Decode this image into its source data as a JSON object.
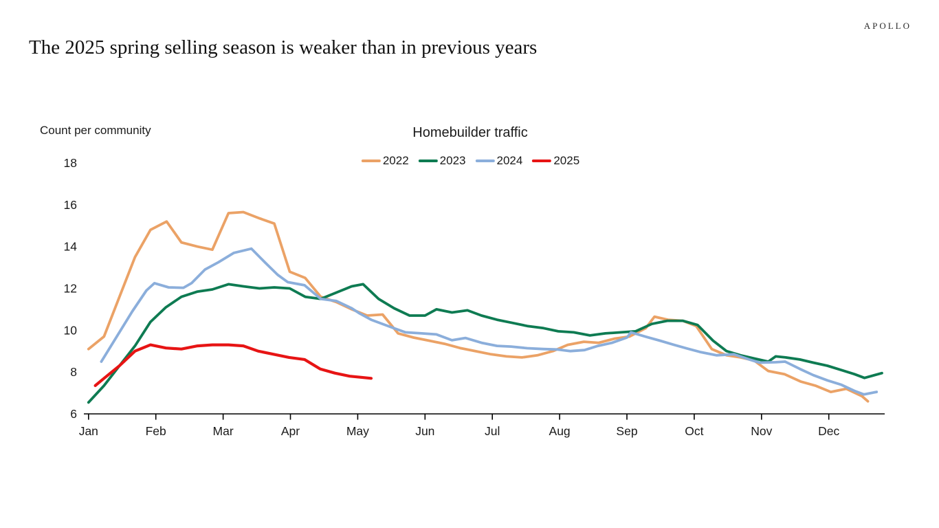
{
  "header": {
    "logo": "APOLLO",
    "title": "The 2025 spring selling season is weaker than in previous years"
  },
  "chart_data": {
    "type": "line",
    "title": "Homebuilder traffic",
    "y_axis_title": "Count per community",
    "ylim": [
      6,
      18
    ],
    "y_ticks": [
      6,
      8,
      10,
      12,
      14,
      16,
      18
    ],
    "x_tick_labels": [
      "Jan",
      "Feb",
      "Mar",
      "Apr",
      "May",
      "Jun",
      "Jul",
      "Aug",
      "Sep",
      "Oct",
      "Nov",
      "Dec"
    ],
    "x_unit": "month position (0 = Jan tick), weekly samples",
    "grid": false,
    "legend_position": "top-center",
    "series": [
      {
        "name": "2022",
        "color": "#EBA266",
        "points": [
          [
            0.0,
            9.1
          ],
          [
            0.23,
            9.7
          ],
          [
            0.46,
            11.6
          ],
          [
            0.69,
            13.5
          ],
          [
            0.92,
            14.8
          ],
          [
            1.16,
            15.2
          ],
          [
            1.38,
            14.2
          ],
          [
            1.62,
            14.0
          ],
          [
            1.84,
            13.85
          ],
          [
            2.08,
            15.6
          ],
          [
            2.3,
            15.65
          ],
          [
            2.54,
            15.35
          ],
          [
            2.76,
            15.1
          ],
          [
            2.99,
            12.8
          ],
          [
            3.22,
            12.5
          ],
          [
            3.45,
            11.6
          ],
          [
            3.68,
            11.35
          ],
          [
            3.91,
            11.0
          ],
          [
            4.14,
            10.7
          ],
          [
            4.37,
            10.75
          ],
          [
            4.6,
            9.85
          ],
          [
            4.83,
            9.65
          ],
          [
            5.06,
            9.5
          ],
          [
            5.29,
            9.35
          ],
          [
            5.52,
            9.15
          ],
          [
            5.75,
            9.0
          ],
          [
            5.98,
            8.85
          ],
          [
            6.21,
            8.75
          ],
          [
            6.44,
            8.7
          ],
          [
            6.67,
            8.8
          ],
          [
            6.9,
            9.0
          ],
          [
            7.12,
            9.3
          ],
          [
            7.36,
            9.45
          ],
          [
            7.58,
            9.4
          ],
          [
            7.82,
            9.6
          ],
          [
            8.04,
            9.7
          ],
          [
            8.28,
            10.1
          ],
          [
            8.41,
            10.65
          ],
          [
            8.61,
            10.5
          ],
          [
            8.83,
            10.45
          ],
          [
            9.03,
            10.2
          ],
          [
            9.26,
            9.1
          ],
          [
            9.48,
            8.8
          ],
          [
            9.69,
            8.7
          ],
          [
            9.89,
            8.55
          ],
          [
            10.1,
            8.05
          ],
          [
            10.34,
            7.9
          ],
          [
            10.58,
            7.55
          ],
          [
            10.8,
            7.35
          ],
          [
            11.03,
            7.05
          ],
          [
            11.26,
            7.2
          ],
          [
            11.49,
            6.85
          ],
          [
            11.58,
            6.6
          ]
        ]
      },
      {
        "name": "2023",
        "color": "#0E7B52",
        "points": [
          [
            0.0,
            6.55
          ],
          [
            0.23,
            7.35
          ],
          [
            0.46,
            8.3
          ],
          [
            0.69,
            9.25
          ],
          [
            0.92,
            10.4
          ],
          [
            1.15,
            11.1
          ],
          [
            1.38,
            11.6
          ],
          [
            1.62,
            11.85
          ],
          [
            1.84,
            11.95
          ],
          [
            2.08,
            12.2
          ],
          [
            2.3,
            12.1
          ],
          [
            2.54,
            12.0
          ],
          [
            2.76,
            12.05
          ],
          [
            2.99,
            12.0
          ],
          [
            3.22,
            11.6
          ],
          [
            3.45,
            11.5
          ],
          [
            3.68,
            11.8
          ],
          [
            3.91,
            12.1
          ],
          [
            4.08,
            12.2
          ],
          [
            4.31,
            11.5
          ],
          [
            4.54,
            11.05
          ],
          [
            4.77,
            10.7
          ],
          [
            5.0,
            10.7
          ],
          [
            5.17,
            11.0
          ],
          [
            5.4,
            10.85
          ],
          [
            5.63,
            10.95
          ],
          [
            5.84,
            10.7
          ],
          [
            6.07,
            10.5
          ],
          [
            6.3,
            10.35
          ],
          [
            6.52,
            10.2
          ],
          [
            6.76,
            10.1
          ],
          [
            6.98,
            9.95
          ],
          [
            7.21,
            9.9
          ],
          [
            7.45,
            9.75
          ],
          [
            7.68,
            9.85
          ],
          [
            7.91,
            9.9
          ],
          [
            8.13,
            9.95
          ],
          [
            8.37,
            10.3
          ],
          [
            8.6,
            10.45
          ],
          [
            8.83,
            10.45
          ],
          [
            9.05,
            10.25
          ],
          [
            9.28,
            9.5
          ],
          [
            9.48,
            9.0
          ],
          [
            9.69,
            8.8
          ],
          [
            9.89,
            8.65
          ],
          [
            10.1,
            8.5
          ],
          [
            10.21,
            8.75
          ],
          [
            10.36,
            8.7
          ],
          [
            10.57,
            8.6
          ],
          [
            10.77,
            8.45
          ],
          [
            10.98,
            8.3
          ],
          [
            11.18,
            8.1
          ],
          [
            11.38,
            7.9
          ],
          [
            11.53,
            7.72
          ],
          [
            11.79,
            7.95
          ]
        ]
      },
      {
        "name": "2024",
        "color": "#8BAEDB",
        "points": [
          [
            0.19,
            8.5
          ],
          [
            0.42,
            9.7
          ],
          [
            0.65,
            10.9
          ],
          [
            0.86,
            11.9
          ],
          [
            0.98,
            12.25
          ],
          [
            1.19,
            12.05
          ],
          [
            1.41,
            12.03
          ],
          [
            1.53,
            12.25
          ],
          [
            1.73,
            12.9
          ],
          [
            1.93,
            13.25
          ],
          [
            2.16,
            13.7
          ],
          [
            2.42,
            13.9
          ],
          [
            2.62,
            13.25
          ],
          [
            2.81,
            12.65
          ],
          [
            2.96,
            12.3
          ],
          [
            3.21,
            12.15
          ],
          [
            3.45,
            11.5
          ],
          [
            3.68,
            11.4
          ],
          [
            3.91,
            11.05
          ],
          [
            4.03,
            10.8
          ],
          [
            4.2,
            10.5
          ],
          [
            4.51,
            10.13
          ],
          [
            4.71,
            9.9
          ],
          [
            4.95,
            9.85
          ],
          [
            5.17,
            9.8
          ],
          [
            5.4,
            9.52
          ],
          [
            5.6,
            9.63
          ],
          [
            5.84,
            9.4
          ],
          [
            6.07,
            9.25
          ],
          [
            6.28,
            9.22
          ],
          [
            6.52,
            9.14
          ],
          [
            6.76,
            9.1
          ],
          [
            6.96,
            9.08
          ],
          [
            7.16,
            9.0
          ],
          [
            7.37,
            9.05
          ],
          [
            7.57,
            9.25
          ],
          [
            7.78,
            9.4
          ],
          [
            8.0,
            9.65
          ],
          [
            8.06,
            9.9
          ],
          [
            8.29,
            9.68
          ],
          [
            8.49,
            9.5
          ],
          [
            8.7,
            9.3
          ],
          [
            8.9,
            9.12
          ],
          [
            9.1,
            8.95
          ],
          [
            9.33,
            8.8
          ],
          [
            9.59,
            8.85
          ],
          [
            9.82,
            8.6
          ],
          [
            9.97,
            8.45
          ],
          [
            10.21,
            8.47
          ],
          [
            10.35,
            8.5
          ],
          [
            10.57,
            8.15
          ],
          [
            10.77,
            7.85
          ],
          [
            10.98,
            7.6
          ],
          [
            11.18,
            7.4
          ],
          [
            11.38,
            7.1
          ],
          [
            11.52,
            6.93
          ],
          [
            11.71,
            7.05
          ]
        ]
      },
      {
        "name": "2025",
        "color": "#E71414",
        "points": [
          [
            0.1,
            7.35
          ],
          [
            0.23,
            7.7
          ],
          [
            0.46,
            8.3
          ],
          [
            0.69,
            9.0
          ],
          [
            0.92,
            9.3
          ],
          [
            1.15,
            9.15
          ],
          [
            1.38,
            9.1
          ],
          [
            1.62,
            9.25
          ],
          [
            1.84,
            9.3
          ],
          [
            2.08,
            9.3
          ],
          [
            2.3,
            9.25
          ],
          [
            2.52,
            9.0
          ],
          [
            2.75,
            8.85
          ],
          [
            2.98,
            8.7
          ],
          [
            3.21,
            8.6
          ],
          [
            3.44,
            8.15
          ],
          [
            3.66,
            7.95
          ],
          [
            3.88,
            7.8
          ],
          [
            4.05,
            7.75
          ],
          [
            4.2,
            7.7
          ]
        ]
      }
    ]
  }
}
